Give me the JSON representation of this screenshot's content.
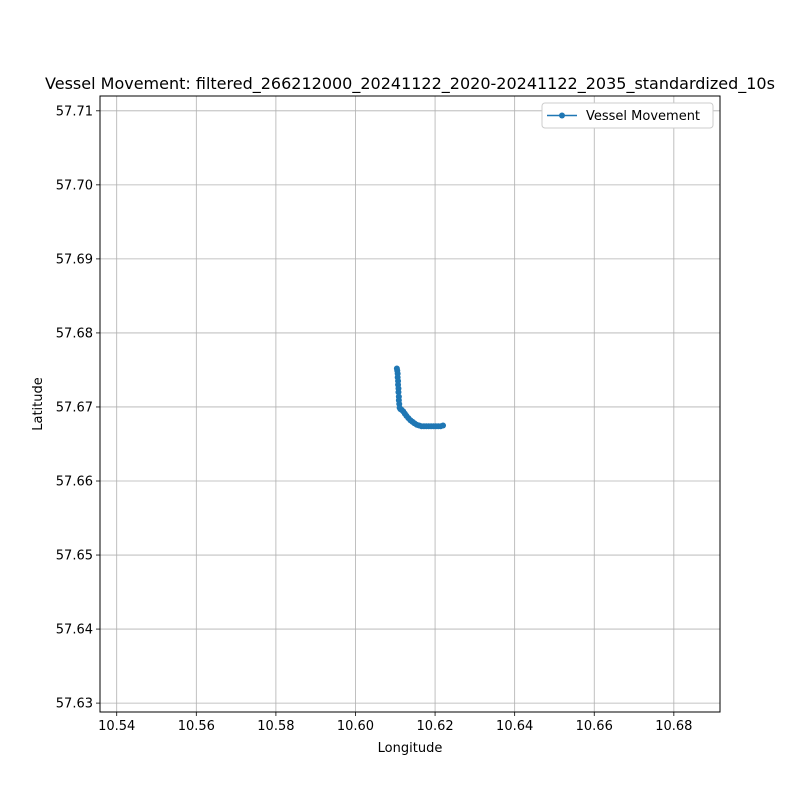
{
  "chart_data": {
    "type": "line",
    "title": "Vessel Movement: filtered_266212000_20241122_2020-20241122_2035_standardized_10s",
    "xlabel": "Longitude",
    "ylabel": "Latitude",
    "xlim": [
      10.5358,
      10.6916
    ],
    "ylim": [
      57.6288,
      57.712
    ],
    "grid": true,
    "legend_position": "top-right",
    "x_ticks": [
      10.54,
      10.56,
      10.58,
      10.6,
      10.62,
      10.64,
      10.66,
      10.68
    ],
    "x_tick_labels": [
      "10.54",
      "10.56",
      "10.58",
      "10.60",
      "10.62",
      "10.64",
      "10.66",
      "10.68"
    ],
    "y_ticks": [
      57.63,
      57.64,
      57.65,
      57.66,
      57.67,
      57.68,
      57.69,
      57.7,
      57.71
    ],
    "y_tick_labels": [
      "57.63",
      "57.64",
      "57.65",
      "57.66",
      "57.67",
      "57.68",
      "57.69",
      "57.70",
      "57.71"
    ],
    "series": [
      {
        "name": "Vessel Movement",
        "color": "#1f77b4",
        "marker": "circle",
        "x": [
          10.6104,
          10.6105,
          10.6106,
          10.6106,
          10.6107,
          10.6107,
          10.6108,
          10.6108,
          10.6109,
          10.6109,
          10.611,
          10.6111,
          10.6113,
          10.6116,
          10.612,
          10.6124,
          10.6128,
          10.6133,
          10.6138,
          10.6143,
          10.6148,
          10.6154,
          10.616,
          10.6166,
          10.6172,
          10.6178,
          10.6184,
          10.619,
          10.6196,
          10.6202,
          10.6208,
          10.6214,
          10.622
        ],
        "y": [
          57.6752,
          57.6749,
          57.6745,
          57.674,
          57.6735,
          57.673,
          57.6725,
          57.672,
          57.6714,
          57.6709,
          57.6704,
          57.6699,
          57.6697,
          57.6696,
          57.6694,
          57.6691,
          57.6688,
          57.6685,
          57.6682,
          57.668,
          57.6678,
          57.6676,
          57.6675,
          57.6674,
          57.6674,
          57.6674,
          57.6674,
          57.6674,
          57.6674,
          57.6674,
          57.6674,
          57.6674,
          57.6675
        ]
      }
    ]
  }
}
